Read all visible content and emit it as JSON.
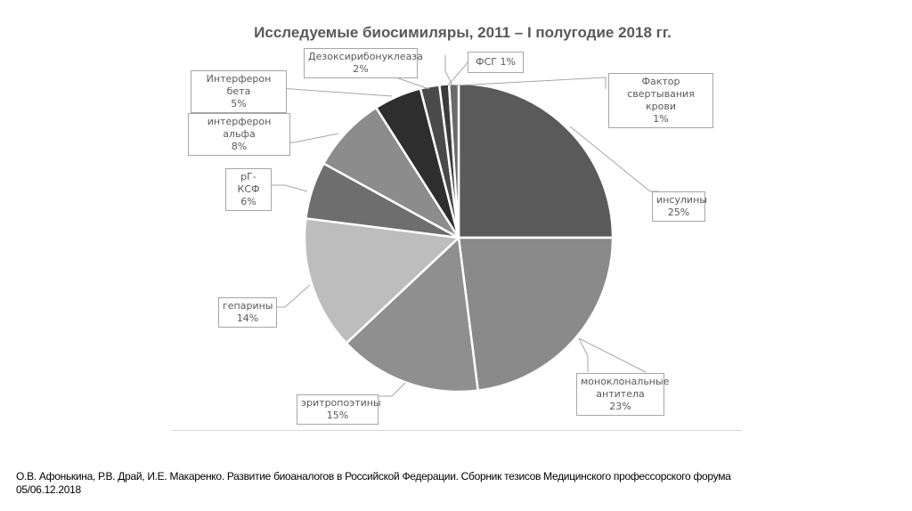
{
  "title": "Исследуемые биосимиляры, 2011 – I полугодие 2018 гг.",
  "citation": {
    "line1": "О.В. Афонькина, Р.В. Драй, И.Е. Макаренко. Развитие биоаналогов в Российской Федерации. Сборник тезисов Медицинского профессорского форума",
    "line2": "05/06.12.2018"
  },
  "labels": {
    "insulins": {
      "name": "инсулины",
      "pct": "25%"
    },
    "monoclonal": {
      "name1": "моноклональные",
      "name2": "антитела",
      "pct": "23%"
    },
    "epo": {
      "name": "эритропоэтины",
      "pct": "15%"
    },
    "heparins": {
      "name": "гепарины",
      "pct": "14%"
    },
    "gcsf": {
      "name": "рГ-КСФ",
      "pct": "6%"
    },
    "ifn_alpha": {
      "name": "интерферон альфа",
      "pct": "8%"
    },
    "ifn_beta": {
      "name": "Интерферон бета",
      "pct": "5%"
    },
    "dnase": {
      "name": "Дезоксирибонуклеаза",
      "pct": "2%"
    },
    "fsh": {
      "text": "ФСГ 1%"
    },
    "factor": {
      "name1": "Фактор свертывания",
      "name2": "крови",
      "pct": "1%"
    }
  },
  "chart_data": {
    "type": "pie",
    "title": "Исследуемые биосимиляры, 2011 – I полугодие 2018 гг.",
    "categories": [
      "инсулины",
      "моноклональные антитела",
      "эритропоэтины",
      "гепарины",
      "рГ-КСФ",
      "интерферон альфа",
      "Интерферон бета",
      "Дезоксирибонуклеаза",
      "ФСГ",
      "Фактор свертывания крови"
    ],
    "values": [
      25,
      23,
      15,
      14,
      6,
      8,
      5,
      2,
      1,
      1
    ],
    "unit": "%",
    "colors": [
      "#5a5a5a",
      "#8a8a8a",
      "#8f8f8f",
      "#bdbdbd",
      "#6e6e6e",
      "#8c8c8c",
      "#2e2e2e",
      "#4a4a4a",
      "#3c3c3c",
      "#6a6a6a"
    ],
    "start_angle": "12 o'clock, clockwise",
    "legend": "none (callout data labels)",
    "grayscale": true
  }
}
